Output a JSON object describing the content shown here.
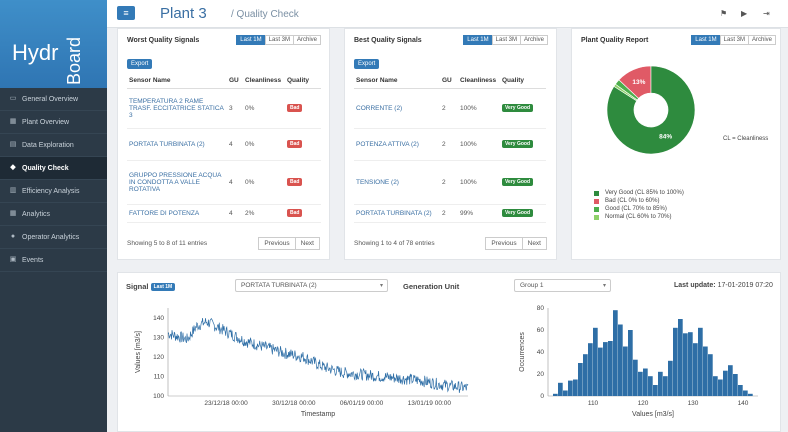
{
  "sidebar": {
    "logo_hy": "Hydr",
    "logo_board": "Board",
    "items": [
      {
        "label": "General Overview",
        "icon": "monitor-icon",
        "glyph": "▭"
      },
      {
        "label": "Plant Overview",
        "icon": "industry-icon",
        "glyph": "▦"
      },
      {
        "label": "Data Exploration",
        "icon": "table-icon",
        "glyph": "▤"
      },
      {
        "label": "Quality Check",
        "icon": "diamond-icon",
        "glyph": "◆"
      },
      {
        "label": "Efficiency Analysis",
        "icon": "chart-icon",
        "glyph": "▥"
      },
      {
        "label": "Analytics",
        "icon": "grid-icon",
        "glyph": "▦"
      },
      {
        "label": "Operator Analytics",
        "icon": "operator-icon",
        "glyph": "●"
      },
      {
        "label": "Events",
        "icon": "calendar-icon",
        "glyph": "▣"
      }
    ],
    "active_index": 3
  },
  "header": {
    "menu_glyph": "≡",
    "title": "Plant 3",
    "subtitle": "/ Quality Check",
    "icons": [
      {
        "name": "flag-icon",
        "glyph": "⚑"
      },
      {
        "name": "video-icon",
        "glyph": "▶"
      },
      {
        "name": "logout-icon",
        "glyph": "⇥"
      }
    ]
  },
  "worst": {
    "title": "Worst Quality Signals",
    "tabs": [
      "Last 1M",
      "Last 3M",
      "Archive"
    ],
    "export_label": "Export",
    "columns": [
      "Sensor Name",
      "GU",
      "Cleanliness",
      "Quality"
    ],
    "rows": [
      {
        "sensor": "TEMPERATURA 2 RAME TRASF. ECCITATRICE STATICA 3",
        "gu": "3",
        "clean": "0%",
        "quality": "Bad"
      },
      {
        "sensor": "PORTATA TURBINATA (2)",
        "gu": "4",
        "clean": "0%",
        "quality": "Bad"
      },
      {
        "sensor": "GRUPPO PRESSIONE ACQUA IN CONDOTTA A VALLE ROTATIVA",
        "gu": "4",
        "clean": "0%",
        "quality": "Bad"
      },
      {
        "sensor": "FATTORE DI POTENZA",
        "gu": "4",
        "clean": "2%",
        "quality": "Bad"
      }
    ],
    "entries": "Showing 5 to 8 of 11 entries",
    "prev": "Previous",
    "next": "Next"
  },
  "best": {
    "title": "Best Quality Signals",
    "tabs": [
      "Last 1M",
      "Last 3M",
      "Archive"
    ],
    "export_label": "Export",
    "columns": [
      "Sensor Name",
      "GU",
      "Cleanliness",
      "Quality"
    ],
    "rows": [
      {
        "sensor": "CORRENTE (2)",
        "gu": "2",
        "clean": "100%",
        "quality": "Very Good"
      },
      {
        "sensor": "POTENZA ATTIVA (2)",
        "gu": "2",
        "clean": "100%",
        "quality": "Very Good"
      },
      {
        "sensor": "TENSIONE (2)",
        "gu": "2",
        "clean": "100%",
        "quality": "Very Good"
      },
      {
        "sensor": "PORTATA TURBINATA (2)",
        "gu": "2",
        "clean": "99%",
        "quality": "Very Good"
      }
    ],
    "entries": "Showing 1 to 4 of 78 entries",
    "prev": "Previous",
    "next": "Next"
  },
  "report": {
    "title": "Plant Quality Report",
    "tabs": [
      "Last 1M",
      "Last 3M",
      "Archive"
    ],
    "cl_note": "CL = Cleanliness",
    "legend": [
      {
        "label": "Very Good (CL 85% to 100%)",
        "color": "#2e8b3e"
      },
      {
        "label": "Bad (CL 0% to 60%)",
        "color": "#e05a66"
      },
      {
        "label": "Good (CL 70% to 85%)",
        "color": "#4cae4c"
      },
      {
        "label": "Normal (CL 60% to 70%)",
        "color": "#8fd16a"
      }
    ]
  },
  "signal": {
    "label": "Signal",
    "badge": "Last 1M",
    "selected": "PORTATA TURBINATA (2)",
    "gen_label": "Generation Unit",
    "gen_selected": "Group 1",
    "update_label": "Last update:",
    "update_value": "17-01-2019 07:20",
    "caret": "▾"
  },
  "chart_data": [
    {
      "type": "pie",
      "title": "",
      "slices": [
        {
          "name": "Very Good (CL 85% to 100%)",
          "value": 84,
          "label": "84%",
          "color": "#2e8b3e"
        },
        {
          "name": "Bad (CL 0% to 60%)",
          "value": 13,
          "label": "13%",
          "color": "#e05a66"
        },
        {
          "name": "Good (CL 70% to 85%)",
          "value": 2,
          "label": "",
          "color": "#4cae4c"
        },
        {
          "name": "Normal (CL 60% to 70%)",
          "value": 1,
          "label": "",
          "color": "#8fd16a"
        }
      ],
      "donut": true
    },
    {
      "type": "line",
      "title": "",
      "xlabel": "Timestamp",
      "ylabel": "Values  [m3/s]",
      "ylim": [
        100,
        145
      ],
      "yticks": [
        "100",
        "110",
        "120",
        "130",
        "140"
      ],
      "xlim": [
        "2018-12-17",
        "2019-01-17"
      ],
      "xticks": [
        {
          "label": "23/12/18 00:00",
          "date": "2018-12-23"
        },
        {
          "label": "30/12/18 00:00",
          "date": "2018-12-30"
        },
        {
          "label": "06/01/19 00:00",
          "date": "2019-01-06"
        },
        {
          "label": "13/01/19 00:00",
          "date": "2019-01-13"
        }
      ],
      "color": "#2e6ea6",
      "trend": [
        {
          "date": "2018-12-17",
          "value": 132
        },
        {
          "date": "2018-12-19",
          "value": 129
        },
        {
          "date": "2018-12-20",
          "value": 136
        },
        {
          "date": "2018-12-21",
          "value": 138
        },
        {
          "date": "2018-12-23",
          "value": 133
        },
        {
          "date": "2018-12-25",
          "value": 128
        },
        {
          "date": "2018-12-27",
          "value": 125
        },
        {
          "date": "2018-12-29",
          "value": 122
        },
        {
          "date": "2018-12-31",
          "value": 120
        },
        {
          "date": "2019-01-02",
          "value": 115
        },
        {
          "date": "2019-01-04",
          "value": 112
        },
        {
          "date": "2019-01-06",
          "value": 111
        },
        {
          "date": "2019-01-08",
          "value": 110
        },
        {
          "date": "2019-01-10",
          "value": 109
        },
        {
          "date": "2019-01-12",
          "value": 108
        },
        {
          "date": "2019-01-14",
          "value": 106
        },
        {
          "date": "2019-01-17",
          "value": 104
        }
      ],
      "noise": 3
    },
    {
      "type": "bar",
      "title": "",
      "xlabel": "Values  [m3/s]",
      "ylabel": "Occurrences",
      "ylim": [
        0,
        80
      ],
      "yticks": [
        "0",
        "20",
        "40",
        "60",
        "80"
      ],
      "xlim": [
        101,
        143
      ],
      "xticks": [
        "110",
        "120",
        "130",
        "140"
      ],
      "bin_start": 102,
      "bin_width": 1,
      "color": "#2e6ea6",
      "values": [
        2,
        12,
        5,
        14,
        15,
        30,
        38,
        48,
        62,
        44,
        49,
        50,
        78,
        65,
        45,
        60,
        33,
        22,
        25,
        18,
        10,
        22,
        18,
        32,
        62,
        70,
        57,
        58,
        48,
        62,
        45,
        38,
        18,
        15,
        23,
        28,
        20,
        10,
        5,
        2
      ]
    }
  ]
}
